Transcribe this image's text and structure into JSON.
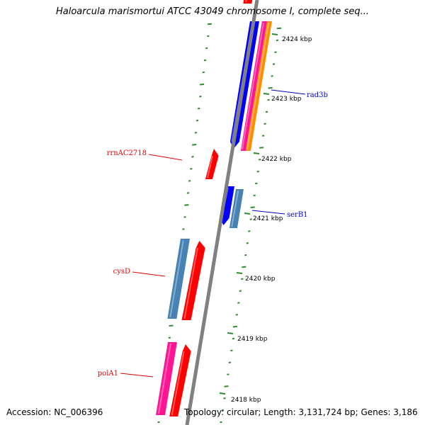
{
  "title": "Haloarcula marismortui ATCC 43049 chromosome I, complete seq...",
  "footer": {
    "accession": "Accession: NC_006396",
    "topology": "Topology: circular; Length: 3,131,724 bp; Genes: 3,186"
  },
  "colors": {
    "backbone": "#808080",
    "tick_marks": "#2e8b2e",
    "red": "#ff0000",
    "blue": "#0000ff",
    "steelblue": "#4682b4",
    "magenta": "#ff1493",
    "orange": "#ff8c00",
    "label_red": "#e00000",
    "label_blue": "#0000cc"
  },
  "ticks": [
    {
      "label": "2424 kbp"
    },
    {
      "label": "2423 kbp"
    },
    {
      "label": "2422 kbp"
    },
    {
      "label": "2421 kbp"
    },
    {
      "label": "2420 kbp"
    },
    {
      "label": "2419 kbp"
    },
    {
      "label": "2418 kbp"
    }
  ],
  "gene_labels": [
    {
      "text": "rad3b",
      "color": "blue"
    },
    {
      "text": "serB1",
      "color": "blue"
    },
    {
      "text": "rrnAC2718",
      "color": "red"
    },
    {
      "text": "cysD",
      "color": "red"
    },
    {
      "text": "polA1",
      "color": "red"
    }
  ]
}
